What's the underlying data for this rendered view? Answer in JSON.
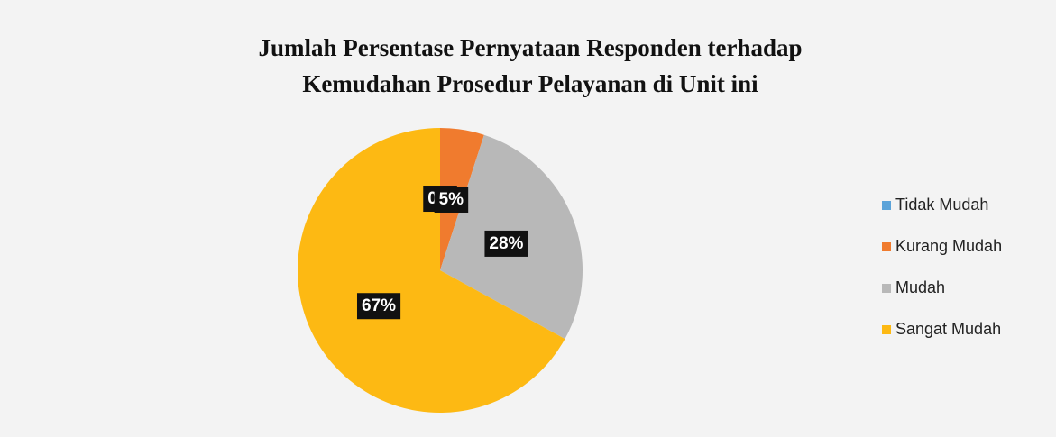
{
  "chart_data": {
    "type": "pie",
    "title": [
      "Jumlah Persentase Pernyataan Responden terhadap",
      "Kemudahan Prosedur Pelayanan di Unit ini"
    ],
    "categories": [
      "Tidak Mudah",
      "Kurang Mudah",
      "Mudah",
      "Sangat Mudah"
    ],
    "values": [
      0,
      5,
      28,
      67
    ],
    "value_labels": [
      "0%",
      "5%",
      "28%",
      "67%"
    ],
    "colors": [
      "#5ba3d9",
      "#f07b2e",
      "#b8b8b8",
      "#fdb913"
    ],
    "legend": "right"
  }
}
